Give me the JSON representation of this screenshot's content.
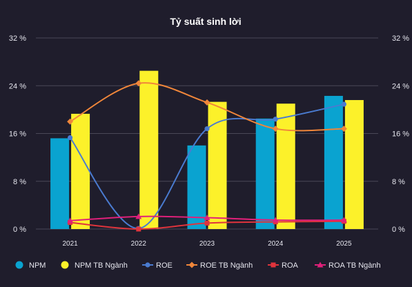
{
  "chart_data": {
    "type": "bar",
    "title": "Tỷ suất sinh lời",
    "categories": [
      "2021",
      "2022",
      "2023",
      "2024",
      "2025"
    ],
    "ylim": [
      0,
      32
    ],
    "yticks": [
      0,
      8,
      16,
      24,
      32
    ],
    "ytick_labels": [
      "0 %",
      "8 %",
      "16 %",
      "24 %",
      "32 %"
    ],
    "y2_ticks_mirrored": true,
    "grid": true,
    "legend_position": "bottom",
    "series": [
      {
        "name": "NPM",
        "kind": "bar",
        "color": "#0aa3d0",
        "values": [
          15.2,
          0,
          14.0,
          18.5,
          22.3
        ]
      },
      {
        "name": "NPM TB Ngành",
        "kind": "bar",
        "color": "#fcf12a",
        "values": [
          19.3,
          26.5,
          21.3,
          21.0,
          21.6
        ]
      },
      {
        "name": "ROE",
        "kind": "line",
        "smooth": true,
        "marker": "circle",
        "color": "#4a7bd0",
        "values": [
          15.3,
          0.1,
          16.8,
          18.4,
          20.9
        ]
      },
      {
        "name": "ROE TB Ngành",
        "kind": "line",
        "smooth": true,
        "marker": "diamond",
        "color": "#f0863a",
        "values": [
          18.0,
          24.4,
          21.2,
          16.8,
          16.8
        ]
      },
      {
        "name": "ROA",
        "kind": "line",
        "smooth": true,
        "marker": "square",
        "color": "#e0343c",
        "values": [
          1.1,
          0.0,
          1.0,
          1.2,
          1.3
        ]
      },
      {
        "name": "ROA TB Ngành",
        "kind": "line",
        "smooth": true,
        "marker": "triangle",
        "color": "#e0207a",
        "values": [
          1.4,
          2.1,
          1.9,
          1.5,
          1.5
        ]
      }
    ]
  }
}
